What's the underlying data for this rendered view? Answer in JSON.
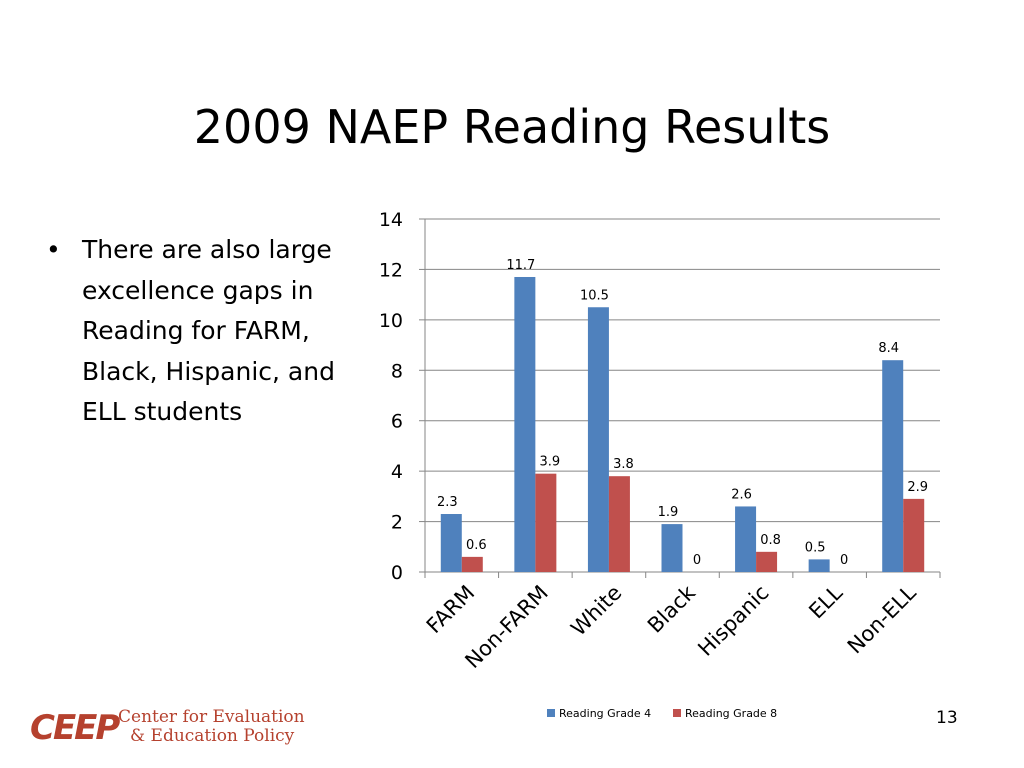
{
  "slide": {
    "title": "2009 NAEP Reading Results",
    "bullet_marker": "•",
    "bullet_text": "There are also large excellence gaps in Reading for FARM, Black, Hispanic, and ELL students",
    "page_number": "13"
  },
  "logo": {
    "mark": "CEEP",
    "line1": "Center for Evaluation",
    "line2": "& Education Policy",
    "color": "#b5412e"
  },
  "chart_data": {
    "type": "bar",
    "categories": [
      "FARM",
      "Non-FARM",
      "White",
      "Black",
      "Hispanic",
      "ELL",
      "Non-ELL"
    ],
    "series": [
      {
        "name": "Reading Grade 4",
        "color": "#4f81bd",
        "values": [
          2.3,
          11.7,
          10.5,
          1.9,
          2.6,
          0.5,
          8.4
        ]
      },
      {
        "name": "Reading Grade 8",
        "color": "#c0504d",
        "values": [
          0.6,
          3.9,
          3.8,
          0,
          0.8,
          0,
          2.9
        ]
      }
    ],
    "ylim": [
      0,
      14
    ],
    "yticks": [
      0,
      2,
      4,
      6,
      8,
      10,
      12,
      14
    ],
    "grid": true,
    "legend_position": "bottom"
  }
}
